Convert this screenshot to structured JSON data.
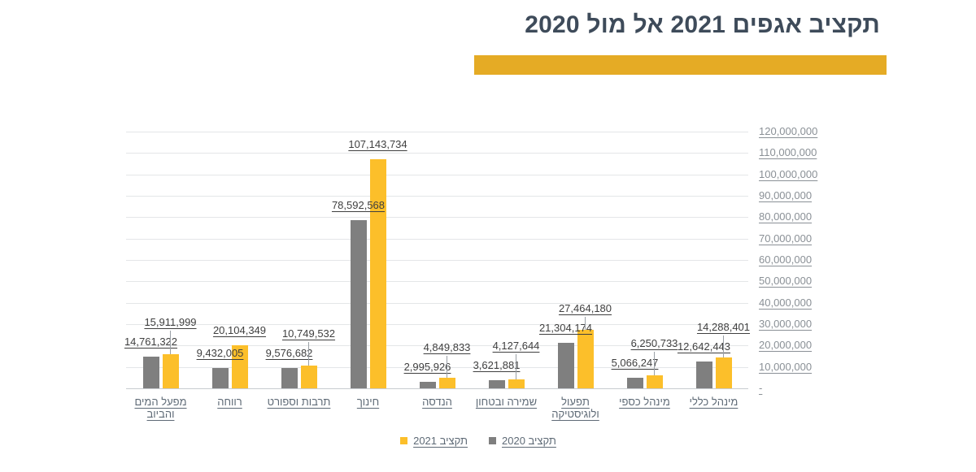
{
  "title": {
    "text": "תקציב אגפים 2021 אל מול 2020"
  },
  "legend": {
    "position": "bottom-center",
    "items": [
      {
        "label": "תקציב 2021",
        "color": "#FCBF2A"
      },
      {
        "label": "תקציב 2020",
        "color": "#7F7F7F"
      }
    ]
  },
  "chart_data": {
    "type": "bar",
    "title": "תקציב אגפים 2021 אל מול 2020",
    "rtl": true,
    "category_axis_direction": "right-to-left",
    "grid": true,
    "y_axis_position": "right",
    "categories": [
      "מינהל כללי",
      "מינהל כספי",
      "תפעול ולוגיסטיקה",
      "שמירה ובטחון",
      "הנדסה",
      "חינוך",
      "תרבות וספורט",
      "רווחה",
      "מפעל המים והביוב"
    ],
    "series": [
      {
        "name": "תקציב 2020",
        "color": "#7F7F7F",
        "values": [
          12642443,
          5066247,
          21304174,
          3621881,
          2995926,
          78592568,
          9576682,
          9432005,
          14761322
        ],
        "labels": [
          "12,642,443",
          "5,066,247",
          "21,304,174",
          "3,621,881",
          "2,995,926",
          "78,592,568",
          "9,576,682",
          "9,432,005",
          "14,761,322"
        ]
      },
      {
        "name": "תקציב 2021",
        "color": "#FCBF2A",
        "values": [
          14288401,
          6250733,
          27464180,
          4127644,
          4849833,
          107143734,
          10749532,
          20104349,
          15911999
        ],
        "labels": [
          "14,288,401",
          "6,250,733",
          "27,464,180",
          "4,127,644",
          "4,849,833",
          "107,143,734",
          "10,749,532",
          "20,104,349",
          "15,911,999"
        ]
      }
    ],
    "y_axis": {
      "min": 0,
      "max": 120000000,
      "step": 10000000,
      "tick_labels": [
        "-",
        "10,000,000",
        "20,000,000",
        "30,000,000",
        "40,000,000",
        "50,000,000",
        "60,000,000",
        "70,000,000",
        "80,000,000",
        "90,000,000",
        "100,000,000",
        "110,000,000",
        "120,000,000"
      ]
    }
  }
}
